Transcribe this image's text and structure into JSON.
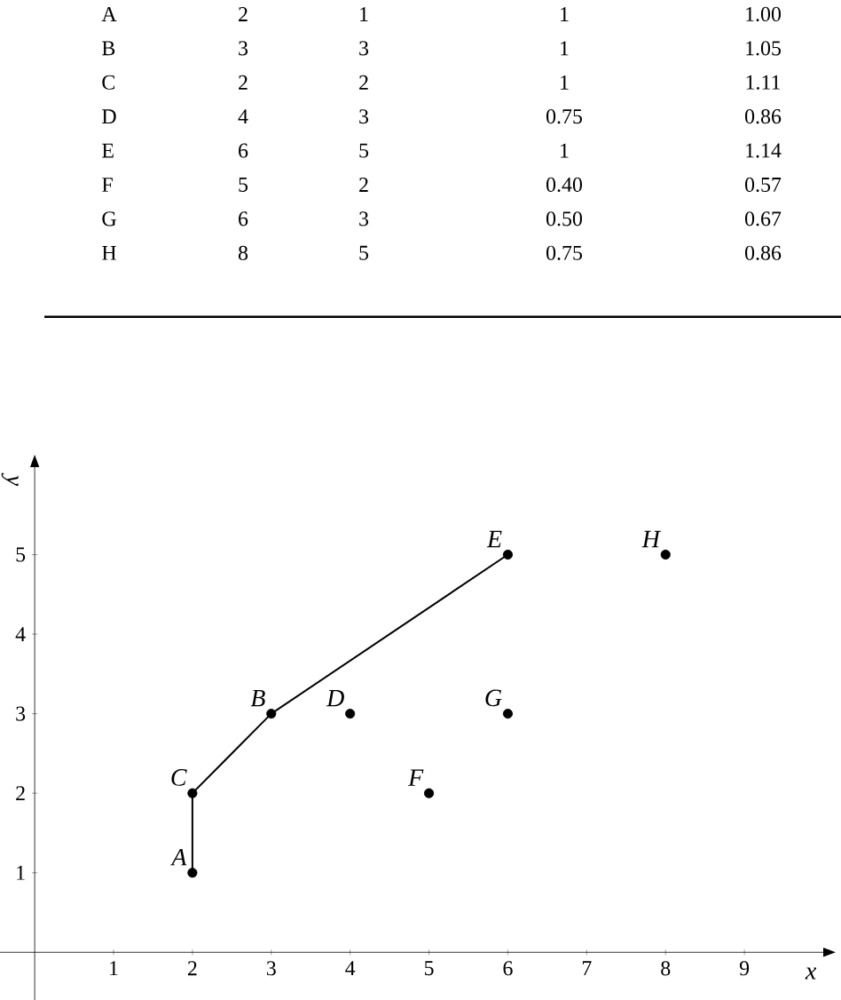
{
  "chart_data": {
    "type": "scatter",
    "xlabel": "x",
    "ylabel": "y",
    "series": [
      {
        "x": [
          2,
          3,
          2,
          4,
          6,
          5,
          6,
          8
        ],
        "values": [
          1,
          3,
          2,
          3,
          5,
          2,
          3,
          5
        ],
        "color": "#000000",
        "marker": "circle"
      },
      {
        "type": "line",
        "x": [
          2,
          2,
          3,
          6
        ],
        "values": [
          1,
          2,
          3,
          5
        ],
        "color": "#000000",
        "marker": "none",
        "line_style": "solid"
      }
    ],
    "xlim": [
      -0.44,
      10
    ],
    "ylim": [
      -0.6,
      6.1
    ],
    "xticks": [
      1,
      2,
      3,
      4,
      5,
      6,
      7,
      8,
      9
    ],
    "yticks": [
      1,
      2,
      3,
      4,
      5
    ],
    "grid": false,
    "annotations": [
      {
        "text": "A",
        "x": 2,
        "y": 1
      },
      {
        "text": "B",
        "x": 3,
        "y": 3
      },
      {
        "text": "C",
        "x": 2,
        "y": 2
      },
      {
        "text": "D",
        "x": 4,
        "y": 3
      },
      {
        "text": "E",
        "x": 6,
        "y": 5
      },
      {
        "text": "F",
        "x": 5,
        "y": 2
      },
      {
        "text": "G",
        "x": 6,
        "y": 3
      },
      {
        "text": "H",
        "x": 8,
        "y": 5
      },
      "A",
      "2",
      "1",
      "1",
      "1.00",
      "B",
      "3",
      "3",
      "1",
      "1.05",
      "C",
      "2",
      "2",
      "1",
      "1.11",
      "D",
      "4",
      "3",
      "0.75",
      "0.86",
      "E",
      "6",
      "5",
      "1",
      "1.14",
      "F",
      "5",
      "2",
      "0.40",
      "0.57",
      "G",
      "6",
      "3",
      "0.50",
      "0.67",
      "H",
      "8",
      "5",
      "0.75",
      "0.86"
    ]
  }
}
